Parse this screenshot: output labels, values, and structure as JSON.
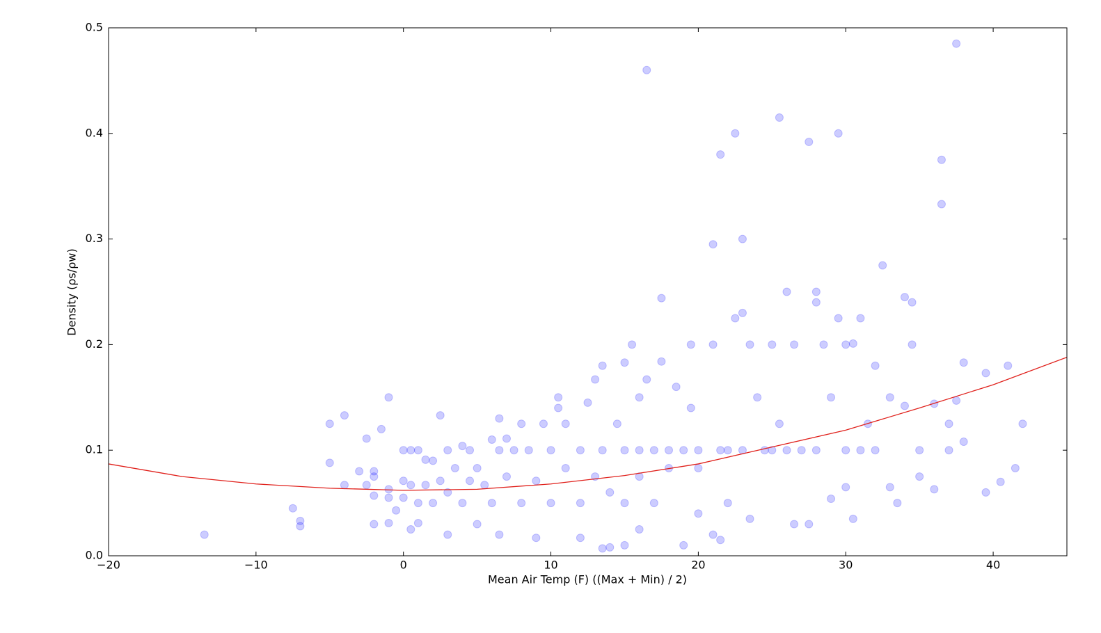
{
  "chart_data": {
    "type": "scatter",
    "xlabel": "Mean Air Temp (F) ((Max + Min) / 2)",
    "ylabel": "Density (ρs/ρw)",
    "xlim": [
      -20,
      45
    ],
    "ylim": [
      0,
      0.5
    ],
    "xticks": [
      {
        "value": -20,
        "label": "−20"
      },
      {
        "value": -10,
        "label": "−10"
      },
      0,
      10,
      20,
      30,
      40
    ],
    "yticks": [
      {
        "value": 0,
        "label": "0.0"
      },
      0.1,
      0.2,
      0.3,
      0.4,
      0.5
    ],
    "series": [
      {
        "type": "scatter",
        "color": "#0000ff",
        "alpha": 0.2,
        "x": [
          -13.5,
          -7.5,
          -7,
          -7,
          -5,
          -5,
          -4,
          -4,
          -3,
          -2.5,
          -2.5,
          -2,
          -2,
          -2,
          -2,
          -1.5,
          -1,
          -1,
          -1,
          -1,
          -0.5,
          0,
          0,
          0,
          0.5,
          0.5,
          0.5,
          1,
          1,
          1,
          1.5,
          1.5,
          2,
          2,
          2.5,
          2.5,
          3,
          3,
          3,
          3.5,
          4,
          4,
          4.5,
          4.5,
          5,
          5,
          5.5,
          6,
          6,
          6.5,
          6.5,
          6.5,
          7,
          7,
          7.5,
          8,
          8,
          8.5,
          9,
          9,
          9.5,
          10,
          10,
          10.5,
          10.5,
          11,
          11,
          12,
          12,
          12,
          12.5,
          13,
          13,
          13.5,
          13.5,
          13.5,
          14,
          14,
          14.5,
          15,
          15,
          15,
          15,
          15.5,
          16,
          16,
          16,
          16,
          16.5,
          16.5,
          17,
          17,
          17.5,
          17.5,
          18,
          18,
          18.5,
          19,
          19,
          19.5,
          19.5,
          20,
          20,
          20,
          21,
          21,
          21,
          21.5,
          21.5,
          21.5,
          22,
          22,
          22.5,
          22.5,
          23,
          23,
          23,
          23.5,
          23.5,
          24,
          24.5,
          25,
          25,
          25.5,
          25.5,
          26,
          26,
          26.5,
          26.5,
          27,
          27.5,
          27.5,
          28,
          28,
          28,
          28.5,
          29,
          29,
          29.5,
          29.5,
          30,
          30,
          30,
          30.5,
          30.5,
          31,
          31,
          31.5,
          32,
          32,
          32.5,
          33,
          33,
          33.5,
          34,
          34,
          34.5,
          34.5,
          35,
          35,
          36,
          36,
          36.5,
          36.5,
          37,
          37,
          37.5,
          37.5,
          38,
          38,
          39.5,
          39.5,
          40.5,
          41,
          41.5,
          42
        ],
        "values": [
          0.02,
          0.045,
          0.033,
          0.028,
          0.125,
          0.088,
          0.133,
          0.067,
          0.08,
          0.111,
          0.067,
          0.08,
          0.075,
          0.057,
          0.03,
          0.12,
          0.15,
          0.063,
          0.055,
          0.031,
          0.043,
          0.1,
          0.071,
          0.055,
          0.1,
          0.067,
          0.025,
          0.1,
          0.031,
          0.05,
          0.091,
          0.067,
          0.09,
          0.05,
          0.133,
          0.071,
          0.1,
          0.06,
          0.02,
          0.083,
          0.104,
          0.05,
          0.1,
          0.071,
          0.083,
          0.03,
          0.067,
          0.11,
          0.05,
          0.13,
          0.1,
          0.02,
          0.111,
          0.075,
          0.1,
          0.125,
          0.05,
          0.1,
          0.071,
          0.017,
          0.125,
          0.1,
          0.05,
          0.15,
          0.14,
          0.083,
          0.125,
          0.1,
          0.05,
          0.017,
          0.145,
          0.167,
          0.075,
          0.18,
          0.1,
          0.007,
          0.06,
          0.008,
          0.125,
          0.183,
          0.1,
          0.05,
          0.01,
          0.2,
          0.15,
          0.1,
          0.075,
          0.025,
          0.46,
          0.167,
          0.1,
          0.05,
          0.244,
          0.184,
          0.1,
          0.083,
          0.16,
          0.1,
          0.01,
          0.2,
          0.14,
          0.1,
          0.083,
          0.04,
          0.295,
          0.2,
          0.02,
          0.38,
          0.1,
          0.015,
          0.1,
          0.05,
          0.4,
          0.225,
          0.3,
          0.23,
          0.1,
          0.2,
          0.035,
          0.15,
          0.1,
          0.2,
          0.1,
          0.415,
          0.125,
          0.25,
          0.1,
          0.2,
          0.03,
          0.1,
          0.392,
          0.03,
          0.25,
          0.24,
          0.1,
          0.2,
          0.15,
          0.054,
          0.4,
          0.225,
          0.2,
          0.1,
          0.065,
          0.201,
          0.035,
          0.225,
          0.1,
          0.125,
          0.18,
          0.1,
          0.275,
          0.15,
          0.065,
          0.05,
          0.245,
          0.142,
          0.24,
          0.2,
          0.1,
          0.075,
          0.144,
          0.063,
          0.375,
          0.333,
          0.125,
          0.1,
          0.485,
          0.147,
          0.183,
          0.108,
          0.173,
          0.06,
          0.07,
          0.18,
          0.083,
          0.125
        ]
      },
      {
        "type": "line",
        "color": "#e0201b",
        "x": [
          -20,
          -15,
          -10,
          -5,
          0,
          5,
          10,
          15,
          20,
          25,
          30,
          35,
          40,
          45
        ],
        "values": [
          0.087,
          0.075,
          0.068,
          0.064,
          0.062,
          0.063,
          0.068,
          0.076,
          0.087,
          0.103,
          0.119,
          0.14,
          0.162,
          0.188
        ]
      }
    ]
  }
}
